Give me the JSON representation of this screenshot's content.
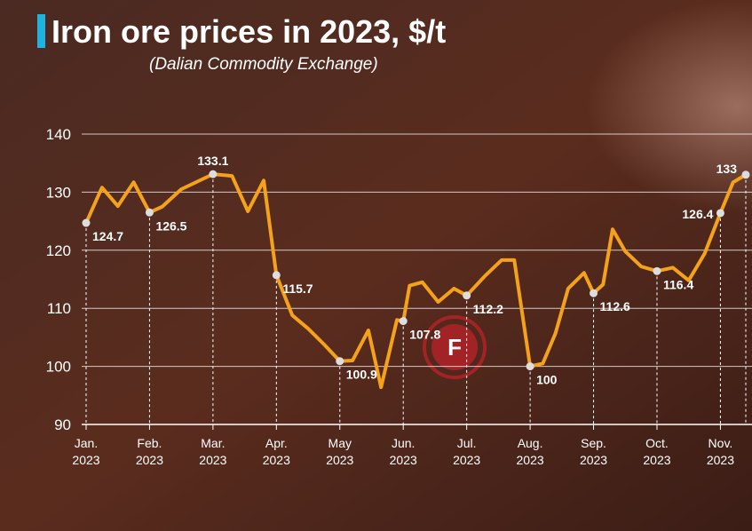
{
  "chart_data": {
    "type": "line",
    "title": "Iron ore prices in 2023, $/t",
    "subtitle": "(Dalian Commodity Exchange)",
    "color": "#f5a21b",
    "grid": true,
    "ylim": [
      90,
      140
    ],
    "yticks": [
      90,
      100,
      110,
      120,
      130,
      140
    ],
    "xlim": [
      0,
      10.4
    ],
    "xticks": [
      {
        "value": 0,
        "label": "Jan. 2023"
      },
      {
        "value": 1,
        "label": "Feb. 2023"
      },
      {
        "value": 2,
        "label": "Mar. 2023"
      },
      {
        "value": 3,
        "label": "Apr. 2023"
      },
      {
        "value": 4,
        "label": "May 2023"
      },
      {
        "value": 5,
        "label": "Jun. 2023"
      },
      {
        "value": 6,
        "label": "Jul. 2023"
      },
      {
        "value": 7,
        "label": "Aug. 2023"
      },
      {
        "value": 8,
        "label": "Sep. 2023"
      },
      {
        "value": 9,
        "label": "Oct. 2023"
      },
      {
        "value": 10,
        "label": "Nov. 2023"
      }
    ],
    "x": [
      0,
      0.25,
      0.5,
      0.75,
      1,
      1.2,
      1.5,
      2,
      2.3,
      2.55,
      2.8,
      3,
      3.25,
      3.5,
      3.75,
      4,
      4.2,
      4.45,
      4.65,
      4.9,
      5,
      5.1,
      5.3,
      5.55,
      5.8,
      6,
      6.3,
      6.55,
      6.75,
      7,
      7.2,
      7.4,
      7.6,
      7.85,
      8,
      8.15,
      8.3,
      8.5,
      8.75,
      9,
      9.25,
      9.5,
      9.75,
      10,
      10.2,
      10.4
    ],
    "values": [
      124.7,
      130.8,
      127.6,
      131.7,
      126.5,
      127.5,
      130.5,
      133.1,
      132.8,
      126.7,
      132,
      115.7,
      108.8,
      106.5,
      103.8,
      100.9,
      101,
      106.2,
      96.4,
      108,
      107.8,
      113.9,
      114.5,
      111.1,
      113.4,
      112.2,
      115.7,
      118.3,
      118.3,
      100,
      100.5,
      105.7,
      113.4,
      116.1,
      112.6,
      114.1,
      123.6,
      119.8,
      117.2,
      116.4,
      117,
      114.8,
      119.4,
      126.4,
      131.7,
      133
    ],
    "value_labels": [
      "124.7",
      null,
      null,
      null,
      "126.5",
      null,
      null,
      "133.1",
      null,
      null,
      null,
      "115.7",
      null,
      null,
      null,
      "100.9",
      null,
      null,
      null,
      null,
      "107.8",
      null,
      null,
      null,
      null,
      "112.2",
      null,
      null,
      null,
      "100",
      null,
      null,
      null,
      null,
      "112.6",
      null,
      null,
      null,
      null,
      "116.4",
      null,
      null,
      null,
      "126.4",
      null,
      "133"
    ]
  }
}
